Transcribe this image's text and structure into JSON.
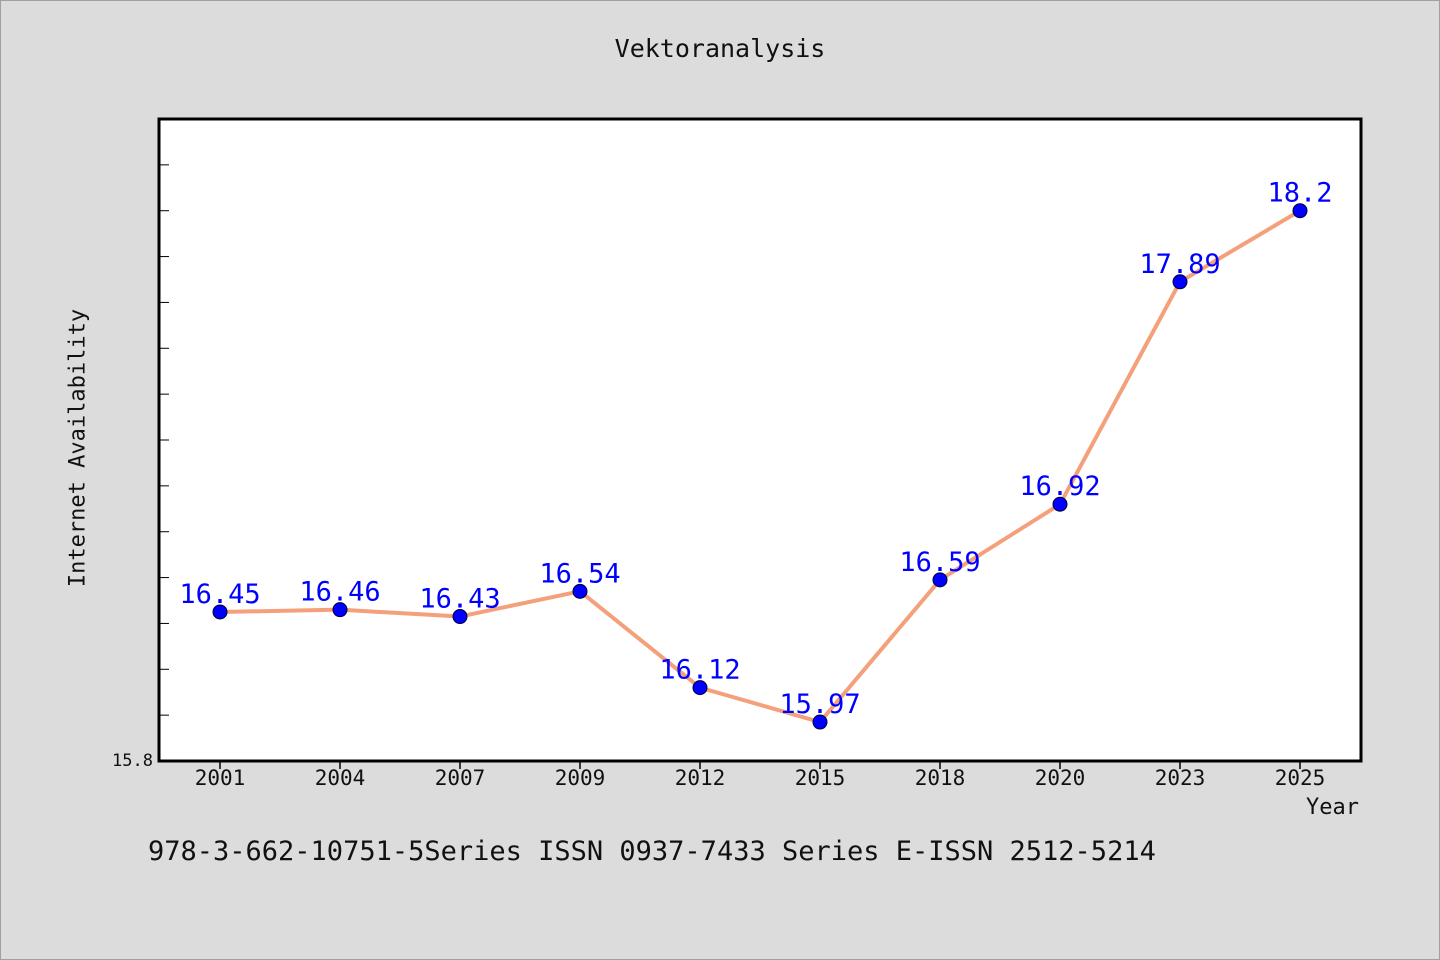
{
  "chart_data": {
    "type": "line",
    "title": "Vektoranalysis",
    "xlabel": "Year",
    "ylabel": "Internet Availability",
    "categories": [
      "2001",
      "2004",
      "2007",
      "2009",
      "2012",
      "2015",
      "2018",
      "2020",
      "2023",
      "2025"
    ],
    "series": [
      {
        "values": [
          16.45,
          16.46,
          16.43,
          16.54,
          16.12,
          15.97,
          16.59,
          16.92,
          17.89,
          18.2
        ]
      }
    ],
    "data_labels": [
      "16.45",
      "16.46",
      "16.43",
      "16.54",
      "16.12",
      "15.97",
      "16.59",
      "16.92",
      "17.89",
      "18.2"
    ],
    "ylim": [
      15.8,
      18.6
    ],
    "yticks_labeled": [
      {
        "value": 15.8,
        "label": "15.8"
      }
    ],
    "minor_tick_step": 0.2,
    "grid": false,
    "legend": "none",
    "colors": {
      "line": "#f4a07a",
      "marker": "#0000ff",
      "label": "#0000ff",
      "background": "#dcdcdc",
      "plot_background": "#ffffff"
    }
  },
  "footer": {
    "text": "978-3-662-10751-5Series ISSN 0937-7433 Series E-ISSN 2512-5214"
  }
}
